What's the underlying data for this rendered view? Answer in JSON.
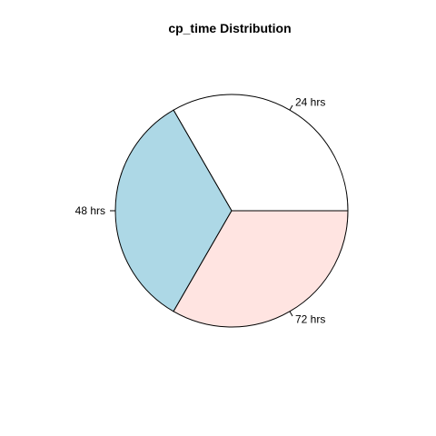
{
  "chart_data": {
    "type": "pie",
    "title": "cp_time Distribution",
    "slices": [
      {
        "label": "24 hrs",
        "value": 1,
        "color": "#FFFFFF"
      },
      {
        "label": "48 hrs",
        "value": 1,
        "color": "#ADD8E6"
      },
      {
        "label": "72 hrs",
        "value": 1,
        "color": "#FFE4E1"
      }
    ],
    "start_angle_deg": 0,
    "direction": "counterclockwise",
    "border_color": "#000000"
  }
}
